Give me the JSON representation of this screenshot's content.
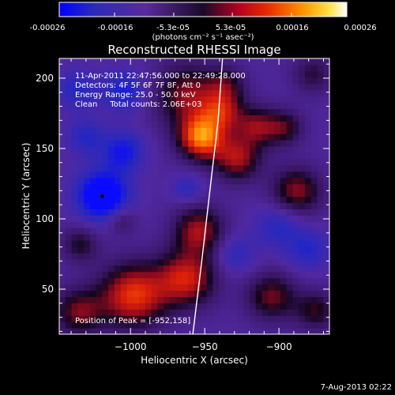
{
  "colorbar": {
    "tick_labels": [
      "-0.00026",
      "-0.00016",
      "-5.3e-05",
      "5.3e-05",
      "0.00016",
      "0.00026"
    ],
    "tick_values": [
      -0.00026,
      -0.00016,
      -5.3e-05,
      5.3e-05,
      0.00016,
      0.00026
    ],
    "unit_label": "(photons cm⁻² s⁻¹ asec⁻²)",
    "range": [
      -0.00026,
      0.00026
    ]
  },
  "image": {
    "title": "Reconstructed RHESSI Image",
    "info_lines": [
      "11-Apr-2011 22:47:56.000 to 22:49:28.000",
      "Detectors: 4F 5F 6F 7F 8F, Att 0",
      "Energy Range: 25.0 - 50.0 keV",
      "Clean     Total counts: 2.06E+03"
    ],
    "peak_label": "Position of Peak = [-952,158]"
  },
  "footer": {
    "date": "7-Aug-2013 02:22"
  },
  "chart_data": {
    "type": "heatmap",
    "title": "Reconstructed RHESSI Image",
    "xlabel": "Heliocentric X (arcsec)",
    "ylabel": "Heliocentric Y (arcsec)",
    "xlim": [
      -1048,
      -866
    ],
    "ylim": [
      18,
      214
    ],
    "x_ticks": [
      -1000,
      -950,
      -900
    ],
    "x_tick_labels": [
      "−1000",
      "−950",
      "−900"
    ],
    "y_ticks": [
      50,
      100,
      150,
      200
    ],
    "y_tick_labels": [
      "50",
      "100",
      "150",
      "200"
    ],
    "colormap": "blue-purple-red-orange-yellow-white",
    "peak": {
      "x": -952,
      "y": 158
    },
    "blobs": [
      {
        "x": -952,
        "y": 158,
        "sigma": 11,
        "amp": 1.0
      },
      {
        "x": -961,
        "y": 188,
        "sigma": 16,
        "amp": 0.6
      },
      {
        "x": -938,
        "y": 177,
        "sigma": 10,
        "amp": 0.55
      },
      {
        "x": -928,
        "y": 143,
        "sigma": 11,
        "amp": 0.65
      },
      {
        "x": -915,
        "y": 166,
        "sigma": 10,
        "amp": 0.55
      },
      {
        "x": -888,
        "y": 120,
        "sigma": 12,
        "amp": 0.6
      },
      {
        "x": -896,
        "y": 165,
        "sigma": 9,
        "amp": 0.45
      },
      {
        "x": -877,
        "y": 203,
        "sigma": 10,
        "amp": 0.35
      },
      {
        "x": -954,
        "y": 92,
        "sigma": 12,
        "amp": 0.65
      },
      {
        "x": -962,
        "y": 58,
        "sigma": 14,
        "amp": 0.75
      },
      {
        "x": -998,
        "y": 46,
        "sigma": 16,
        "amp": 0.85
      },
      {
        "x": -1035,
        "y": 34,
        "sigma": 12,
        "amp": 0.55
      },
      {
        "x": -1034,
        "y": 82,
        "sigma": 9,
        "amp": 0.4
      },
      {
        "x": -905,
        "y": 45,
        "sigma": 12,
        "amp": 0.55
      },
      {
        "x": -875,
        "y": 35,
        "sigma": 10,
        "amp": 0.45
      },
      {
        "x": -1006,
        "y": 99,
        "sigma": 7,
        "amp": 0.3
      },
      {
        "x": -935,
        "y": 196,
        "sigma": 9,
        "amp": 0.35
      },
      {
        "x": -1019,
        "y": 117,
        "sigma": 12,
        "amp": -0.85
      },
      {
        "x": -1005,
        "y": 148,
        "sigma": 10,
        "amp": -0.5
      },
      {
        "x": -1004,
        "y": 191,
        "sigma": 10,
        "amp": -0.45
      },
      {
        "x": -1036,
        "y": 192,
        "sigma": 10,
        "amp": -0.35
      },
      {
        "x": -900,
        "y": 95,
        "sigma": 11,
        "amp": -0.35
      },
      {
        "x": -930,
        "y": 75,
        "sigma": 10,
        "amp": -0.3
      },
      {
        "x": -880,
        "y": 78,
        "sigma": 10,
        "amp": -0.35
      },
      {
        "x": -962,
        "y": 122,
        "sigma": 7,
        "amp": -0.3
      },
      {
        "x": -1030,
        "y": 158,
        "sigma": 9,
        "amp": -0.35
      }
    ],
    "limb_curve": [
      [
        -958,
        18
      ],
      [
        -952,
        70
      ],
      [
        -946,
        125
      ],
      [
        -941,
        170
      ],
      [
        -938,
        214
      ]
    ],
    "marker": {
      "x": -1019,
      "y": 116
    }
  }
}
